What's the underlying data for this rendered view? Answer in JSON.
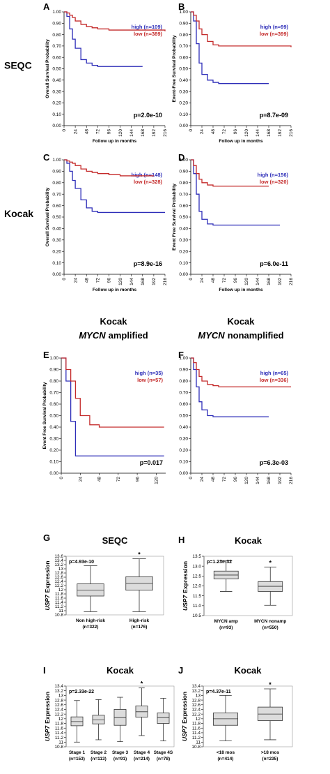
{
  "chart_data": [
    {
      "type": "step",
      "panel": "A",
      "row_label": "SEQC",
      "ylabel": "Overall Survival Probability",
      "xlabel": "Follow up in months",
      "p_value": "p=2.0e-10",
      "x": [
        0,
        6,
        12,
        18,
        24,
        36,
        48,
        60,
        72,
        96,
        120,
        144,
        168,
        192,
        216
      ],
      "series": [
        {
          "name": "high (n=109)",
          "color": "#2d2db8",
          "values": [
            1.0,
            0.96,
            0.85,
            0.76,
            0.68,
            0.58,
            0.55,
            0.53,
            0.52,
            0.52,
            0.52,
            0.52,
            0.52,
            null,
            null
          ]
        },
        {
          "name": "low (n=389)",
          "color": "#c42a2a",
          "values": [
            1.0,
            0.99,
            0.97,
            0.95,
            0.92,
            0.89,
            0.87,
            0.86,
            0.85,
            0.84,
            0.84,
            0.84,
            0.84,
            0.84,
            0.83
          ]
        }
      ],
      "xlim": [
        0,
        216
      ],
      "xticks": [
        0,
        24,
        48,
        72,
        96,
        120,
        144,
        168,
        192,
        216
      ],
      "ylim": [
        0,
        1
      ],
      "yticks": [
        {
          "value": 0,
          "label": "0.00"
        },
        {
          "value": 0.1,
          "label": "0.10"
        },
        {
          "value": 0.2,
          "label": "0.20"
        },
        {
          "value": 0.3,
          "label": "0.30"
        },
        {
          "value": 0.4,
          "label": "0.40"
        },
        {
          "value": 0.5,
          "label": "0.50"
        },
        {
          "value": 0.6,
          "label": "0.60"
        },
        {
          "value": 0.7,
          "label": "0.70"
        },
        {
          "value": 0.8,
          "label": "0.80"
        },
        {
          "value": 0.9,
          "label": "0.90"
        },
        {
          "value": 1,
          "label": "1.00"
        }
      ]
    },
    {
      "type": "step",
      "panel": "B",
      "ylabel": "Event-Free Survival Probability",
      "xlabel": "Follow up in months",
      "p_value": "p=8.7e-09",
      "x": [
        0,
        6,
        12,
        18,
        24,
        36,
        48,
        60,
        72,
        96,
        120,
        144,
        168,
        192,
        216
      ],
      "series": [
        {
          "name": "high (n=99)",
          "color": "#2d2db8",
          "values": [
            1.0,
            0.92,
            0.72,
            0.55,
            0.45,
            0.4,
            0.38,
            0.37,
            0.37,
            0.37,
            0.37,
            0.37,
            0.37,
            null,
            null
          ]
        },
        {
          "name": "low (n=399)",
          "color": "#c42a2a",
          "values": [
            1.0,
            0.97,
            0.92,
            0.85,
            0.8,
            0.74,
            0.71,
            0.7,
            0.7,
            0.7,
            0.7,
            0.7,
            0.7,
            0.7,
            0.69
          ]
        }
      ],
      "xlim": [
        0,
        216
      ],
      "xticks": [
        0,
        24,
        48,
        72,
        96,
        120,
        144,
        168,
        192,
        216
      ],
      "ylim": [
        0,
        1
      ],
      "yticks": [
        {
          "value": 0,
          "label": "0.00"
        },
        {
          "value": 0.1,
          "label": "0.10"
        },
        {
          "value": 0.2,
          "label": "0.20"
        },
        {
          "value": 0.3,
          "label": "0.30"
        },
        {
          "value": 0.4,
          "label": "0.40"
        },
        {
          "value": 0.5,
          "label": "0.50"
        },
        {
          "value": 0.6,
          "label": "0.60"
        },
        {
          "value": 0.7,
          "label": "0.70"
        },
        {
          "value": 0.8,
          "label": "0.80"
        },
        {
          "value": 0.9,
          "label": "0.90"
        },
        {
          "value": 1,
          "label": "1.00"
        }
      ]
    },
    {
      "type": "step",
      "panel": "C",
      "row_label": "Kocak",
      "ylabel": "Overall Survival Probability",
      "xlabel": "Follow up in months",
      "p_value": "p=8.9e-16",
      "x": [
        0,
        6,
        12,
        18,
        24,
        36,
        48,
        60,
        72,
        96,
        120,
        144,
        168,
        192,
        216
      ],
      "series": [
        {
          "name": "high (n=148)",
          "color": "#2d2db8",
          "values": [
            1.0,
            0.97,
            0.9,
            0.82,
            0.75,
            0.65,
            0.58,
            0.55,
            0.54,
            0.54,
            0.54,
            0.54,
            0.54,
            0.54,
            0.54
          ]
        },
        {
          "name": "low (n=328)",
          "color": "#c42a2a",
          "values": [
            1.0,
            0.99,
            0.98,
            0.97,
            0.95,
            0.92,
            0.9,
            0.89,
            0.88,
            0.87,
            0.86,
            0.86,
            0.86,
            0.86,
            null
          ]
        }
      ],
      "xlim": [
        0,
        216
      ],
      "xticks": [
        0,
        24,
        48,
        72,
        96,
        120,
        144,
        168,
        192,
        216
      ],
      "ylim": [
        0,
        1
      ],
      "yticks": [
        {
          "value": 0,
          "label": "0.00"
        },
        {
          "value": 0.1,
          "label": "0.10"
        },
        {
          "value": 0.2,
          "label": "0.20"
        },
        {
          "value": 0.3,
          "label": "0.30"
        },
        {
          "value": 0.4,
          "label": "0.40"
        },
        {
          "value": 0.5,
          "label": "0.50"
        },
        {
          "value": 0.6,
          "label": "0.60"
        },
        {
          "value": 0.7,
          "label": "0.70"
        },
        {
          "value": 0.8,
          "label": "0.80"
        },
        {
          "value": 0.9,
          "label": "0.90"
        },
        {
          "value": 1,
          "label": "1.00"
        }
      ]
    },
    {
      "type": "step",
      "panel": "D",
      "ylabel": "Event Free Survival Probability",
      "xlabel": "Follow up in months",
      "p_value": "p=6.0e-11",
      "x": [
        0,
        6,
        12,
        18,
        24,
        36,
        48,
        60,
        72,
        96,
        120,
        144,
        168,
        192,
        216
      ],
      "series": [
        {
          "name": "high (n=156)",
          "color": "#2d2db8",
          "values": [
            1.0,
            0.88,
            0.7,
            0.55,
            0.48,
            0.44,
            0.43,
            0.43,
            0.43,
            0.43,
            0.43,
            0.43,
            0.43,
            0.43,
            null
          ]
        },
        {
          "name": "low (n=320)",
          "color": "#c42a2a",
          "values": [
            1.0,
            0.95,
            0.88,
            0.83,
            0.8,
            0.78,
            0.77,
            0.77,
            0.77,
            0.77,
            0.77,
            0.77,
            0.77,
            null,
            null
          ]
        }
      ],
      "xlim": [
        0,
        216
      ],
      "xticks": [
        0,
        24,
        48,
        72,
        96,
        120,
        144,
        168,
        192,
        216
      ],
      "ylim": [
        0,
        1
      ],
      "yticks": [
        {
          "value": 0,
          "label": "0.00"
        },
        {
          "value": 0.1,
          "label": "0.10"
        },
        {
          "value": 0.2,
          "label": "0.20"
        },
        {
          "value": 0.3,
          "label": "0.30"
        },
        {
          "value": 0.4,
          "label": "0.40"
        },
        {
          "value": 0.5,
          "label": "0.50"
        },
        {
          "value": 0.6,
          "label": "0.60"
        },
        {
          "value": 0.7,
          "label": "0.70"
        },
        {
          "value": 0.8,
          "label": "0.80"
        },
        {
          "value": 0.9,
          "label": "0.90"
        },
        {
          "value": 1,
          "label": "1.00"
        }
      ]
    },
    {
      "type": "step",
      "panel": "E",
      "title": "Kocak",
      "subtitle": [
        "MYCN",
        "amplified"
      ],
      "ylabel": "Event Free Survival Probability",
      "p_value": "p=0.017",
      "x": [
        0,
        6,
        12,
        18,
        24,
        36,
        48,
        60,
        72,
        96,
        120,
        130
      ],
      "series": [
        {
          "name": "high (n=35)",
          "color": "#2d2db8",
          "values": [
            1.0,
            0.8,
            0.45,
            0.15,
            0.15,
            0.15,
            0.15,
            0.15,
            0.15,
            0.15,
            0.15,
            0.15
          ]
        },
        {
          "name": "low (n=57)",
          "color": "#c42a2a",
          "values": [
            1.0,
            0.9,
            0.8,
            0.65,
            0.5,
            0.42,
            0.4,
            0.4,
            0.4,
            0.4,
            0.4,
            0.4
          ]
        }
      ],
      "xlim": [
        0,
        132
      ],
      "xticks": [
        0,
        24,
        48,
        72,
        96,
        120
      ],
      "ylim": [
        0,
        1
      ],
      "yticks": [
        {
          "value": 0,
          "label": "0.00"
        },
        {
          "value": 0.1,
          "label": "0.10"
        },
        {
          "value": 0.2,
          "label": "0.20"
        },
        {
          "value": 0.3,
          "label": "0.30"
        },
        {
          "value": 0.4,
          "label": "0.40"
        },
        {
          "value": 0.5,
          "label": "0.50"
        },
        {
          "value": 0.6,
          "label": "0.60"
        },
        {
          "value": 0.7,
          "label": "0.70"
        },
        {
          "value": 0.8,
          "label": "0.80"
        },
        {
          "value": 0.9,
          "label": "0.90"
        },
        {
          "value": 1,
          "label": "1.00"
        }
      ]
    },
    {
      "type": "step",
      "panel": "F",
      "title": "Kocak",
      "subtitle": [
        "MYCN",
        "nonamplified"
      ],
      "p_value": "p=6.3e-03",
      "x": [
        0,
        6,
        12,
        18,
        24,
        36,
        48,
        60,
        72,
        96,
        120,
        144,
        168,
        192,
        216
      ],
      "series": [
        {
          "name": "high (n=65)",
          "color": "#2d2db8",
          "values": [
            1.0,
            0.9,
            0.75,
            0.62,
            0.55,
            0.5,
            0.49,
            0.49,
            0.49,
            0.49,
            0.49,
            0.49,
            0.49,
            null,
            null
          ]
        },
        {
          "name": "low (n=336)",
          "color": "#c42a2a",
          "values": [
            1.0,
            0.96,
            0.9,
            0.84,
            0.8,
            0.77,
            0.76,
            0.75,
            0.75,
            0.75,
            0.75,
            0.75,
            0.75,
            0.75,
            0.75
          ]
        }
      ],
      "xlim": [
        0,
        216
      ],
      "xticks": [
        0,
        24,
        48,
        72,
        96,
        120,
        144,
        168,
        192,
        216
      ],
      "ylim": [
        0,
        1
      ],
      "yticks": [
        {
          "value": 0,
          "label": "0.00"
        },
        {
          "value": 0.1,
          "label": "0.10"
        },
        {
          "value": 0.2,
          "label": "0.20"
        },
        {
          "value": 0.3,
          "label": "0.30"
        },
        {
          "value": 0.4,
          "label": "0.40"
        },
        {
          "value": 0.5,
          "label": "0.50"
        },
        {
          "value": 0.6,
          "label": "0.60"
        },
        {
          "value": 0.7,
          "label": "0.70"
        },
        {
          "value": 0.8,
          "label": "0.80"
        },
        {
          "value": 0.9,
          "label": "0.90"
        },
        {
          "value": 1,
          "label": "1.00"
        }
      ]
    },
    {
      "type": "box",
      "panel": "G",
      "title": "SEQC",
      "ylabel": [
        "USP7",
        "Expression"
      ],
      "p_value": "p=4.93e-10",
      "annotation": "*",
      "annotation_index": 1,
      "categories": [
        "Non high-risk",
        "High-risk"
      ],
      "counts": [
        "(n=322)",
        "(n=176)"
      ],
      "color": "#dcdcdc",
      "boxes": [
        {
          "min": 10.95,
          "q1": 11.7,
          "median": 11.98,
          "q3": 12.28,
          "max": 13.15
        },
        {
          "min": 10.95,
          "q1": 11.98,
          "median": 12.3,
          "q3": 12.62,
          "max": 13.48
        }
      ],
      "ylim": [
        10.8,
        13.6
      ],
      "yticks": [
        10.8,
        11,
        11.2,
        11.4,
        11.6,
        11.8,
        12,
        12.2,
        12.4,
        12.6,
        12.8,
        13,
        13.2,
        13.4,
        13.6
      ]
    },
    {
      "type": "box",
      "panel": "H",
      "title": "Kocak",
      "ylabel": [
        "USP7",
        "Expression"
      ],
      "p_value": "p=1.23e-32",
      "annotation": "*",
      "annotation_index": 1,
      "categories": [
        "MYCN amp",
        "MYCN nonamp"
      ],
      "counts": [
        "(n=93)",
        "(n=550)"
      ],
      "color": "#dcdcdc",
      "boxes": [
        {
          "min": 11.72,
          "q1": 12.35,
          "median": 12.55,
          "q3": 12.75,
          "max": 13.27
        },
        {
          "min": 11.02,
          "q1": 11.72,
          "median": 11.98,
          "q3": 12.22,
          "max": 12.95
        }
      ],
      "ylim": [
        10.5,
        13.5
      ],
      "yticks": [
        {
          "value": 10.5,
          "label": "10.5"
        },
        {
          "value": 11,
          "label": "11.0"
        },
        {
          "value": 11.5,
          "label": "11.5"
        },
        {
          "value": 12,
          "label": "12.0"
        },
        {
          "value": 12.5,
          "label": "12.5"
        },
        {
          "value": 13,
          "label": "13.0"
        },
        {
          "value": 13.5,
          "label": "13.5"
        }
      ]
    },
    {
      "type": "box",
      "panel": "I",
      "title": "Kocak",
      "ylabel": [
        "USP7",
        "Expression"
      ],
      "p_value": "p=2.33e-22",
      "annotation": "*",
      "annotation_index": 3,
      "categories": [
        "Stage 1",
        "Stage 2",
        "Stage 3",
        "Stage 4",
        "Stage 4S"
      ],
      "counts": [
        "(n=153)",
        "(n=113)",
        "(n=91)",
        "(n=214)",
        "(n=78)"
      ],
      "color": "#dcdcdc",
      "boxes": [
        {
          "min": 11.0,
          "q1": 11.7,
          "median": 11.88,
          "q3": 12.08,
          "max": 12.78
        },
        {
          "min": 11.1,
          "q1": 11.78,
          "median": 11.95,
          "q3": 12.15,
          "max": 12.82
        },
        {
          "min": 11.02,
          "q1": 11.72,
          "median": 12.05,
          "q3": 12.4,
          "max": 12.92
        },
        {
          "min": 11.28,
          "q1": 12.07,
          "median": 12.3,
          "q3": 12.55,
          "max": 13.32
        },
        {
          "min": 11.05,
          "q1": 11.8,
          "median": 12.05,
          "q3": 12.25,
          "max": 12.88
        }
      ],
      "ylim": [
        10.8,
        13.4
      ],
      "yticks": [
        10.8,
        11,
        11.2,
        11.4,
        11.6,
        11.8,
        12,
        12.2,
        12.4,
        12.6,
        12.8,
        13,
        13.2,
        13.4
      ]
    },
    {
      "type": "box",
      "panel": "J",
      "title": "Kocak",
      "ylabel": [
        "USP7",
        "Expression"
      ],
      "p_value": "p=4.37e-11",
      "annotation": "*",
      "annotation_index": 1,
      "categories": [
        "<18 mos",
        ">18 mos"
      ],
      "counts": [
        "(n=414)",
        "(n=235)"
      ],
      "color": "#dcdcdc",
      "boxes": [
        {
          "min": 11.05,
          "q1": 11.72,
          "median": 12.0,
          "q3": 12.25,
          "max": 13.0
        },
        {
          "min": 11.1,
          "q1": 11.92,
          "median": 12.2,
          "q3": 12.5,
          "max": 13.28
        }
      ],
      "ylim": [
        10.8,
        13.4
      ],
      "yticks": [
        10.8,
        11,
        11.2,
        11.4,
        11.6,
        11.8,
        12,
        12.2,
        12.4,
        12.6,
        12.8,
        13,
        13.2,
        13.4
      ]
    }
  ]
}
